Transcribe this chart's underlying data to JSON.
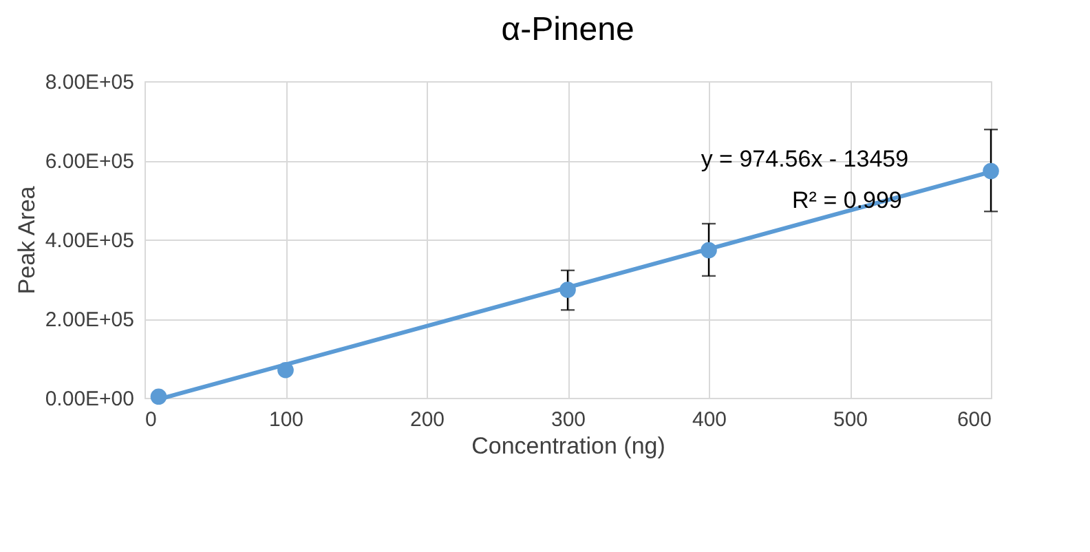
{
  "chart_data": {
    "type": "scatter",
    "title": "α-Pinene",
    "xlabel": "Concentration (ng)",
    "ylabel": "Peak Area",
    "x": [
      10,
      100,
      300,
      400,
      600
    ],
    "series": [
      {
        "color": "#5b9bd5",
        "marker": "circle",
        "values": [
          3000,
          70000,
          273000,
          373000,
          573000
        ],
        "errors": [
          null,
          null,
          [
            222000,
            322000
          ],
          [
            308000,
            440000
          ],
          [
            471000,
            678000
          ]
        ]
      },
      {
        "type": "line",
        "color": "#5b9bd5",
        "x": [
          13.8,
          600
        ],
        "values": [
          0,
          571000
        ],
        "marker": "none"
      }
    ],
    "xlim": [
      0,
      600
    ],
    "xticks": [
      0,
      100,
      200,
      300,
      400,
      500,
      600
    ],
    "ylim": [
      0,
      800000
    ],
    "yticks": [
      {
        "value": 0,
        "label": "0.00E+00"
      },
      {
        "value": 200000,
        "label": "2.00E+05"
      },
      {
        "value": 400000,
        "label": "4.00E+05"
      },
      {
        "value": 600000,
        "label": "6.00E+05"
      },
      {
        "value": 800000,
        "label": "8.00E+05"
      }
    ],
    "annotations": [
      "y = 974.56x - 13459",
      "R² = 0.999"
    ],
    "grid": true
  }
}
